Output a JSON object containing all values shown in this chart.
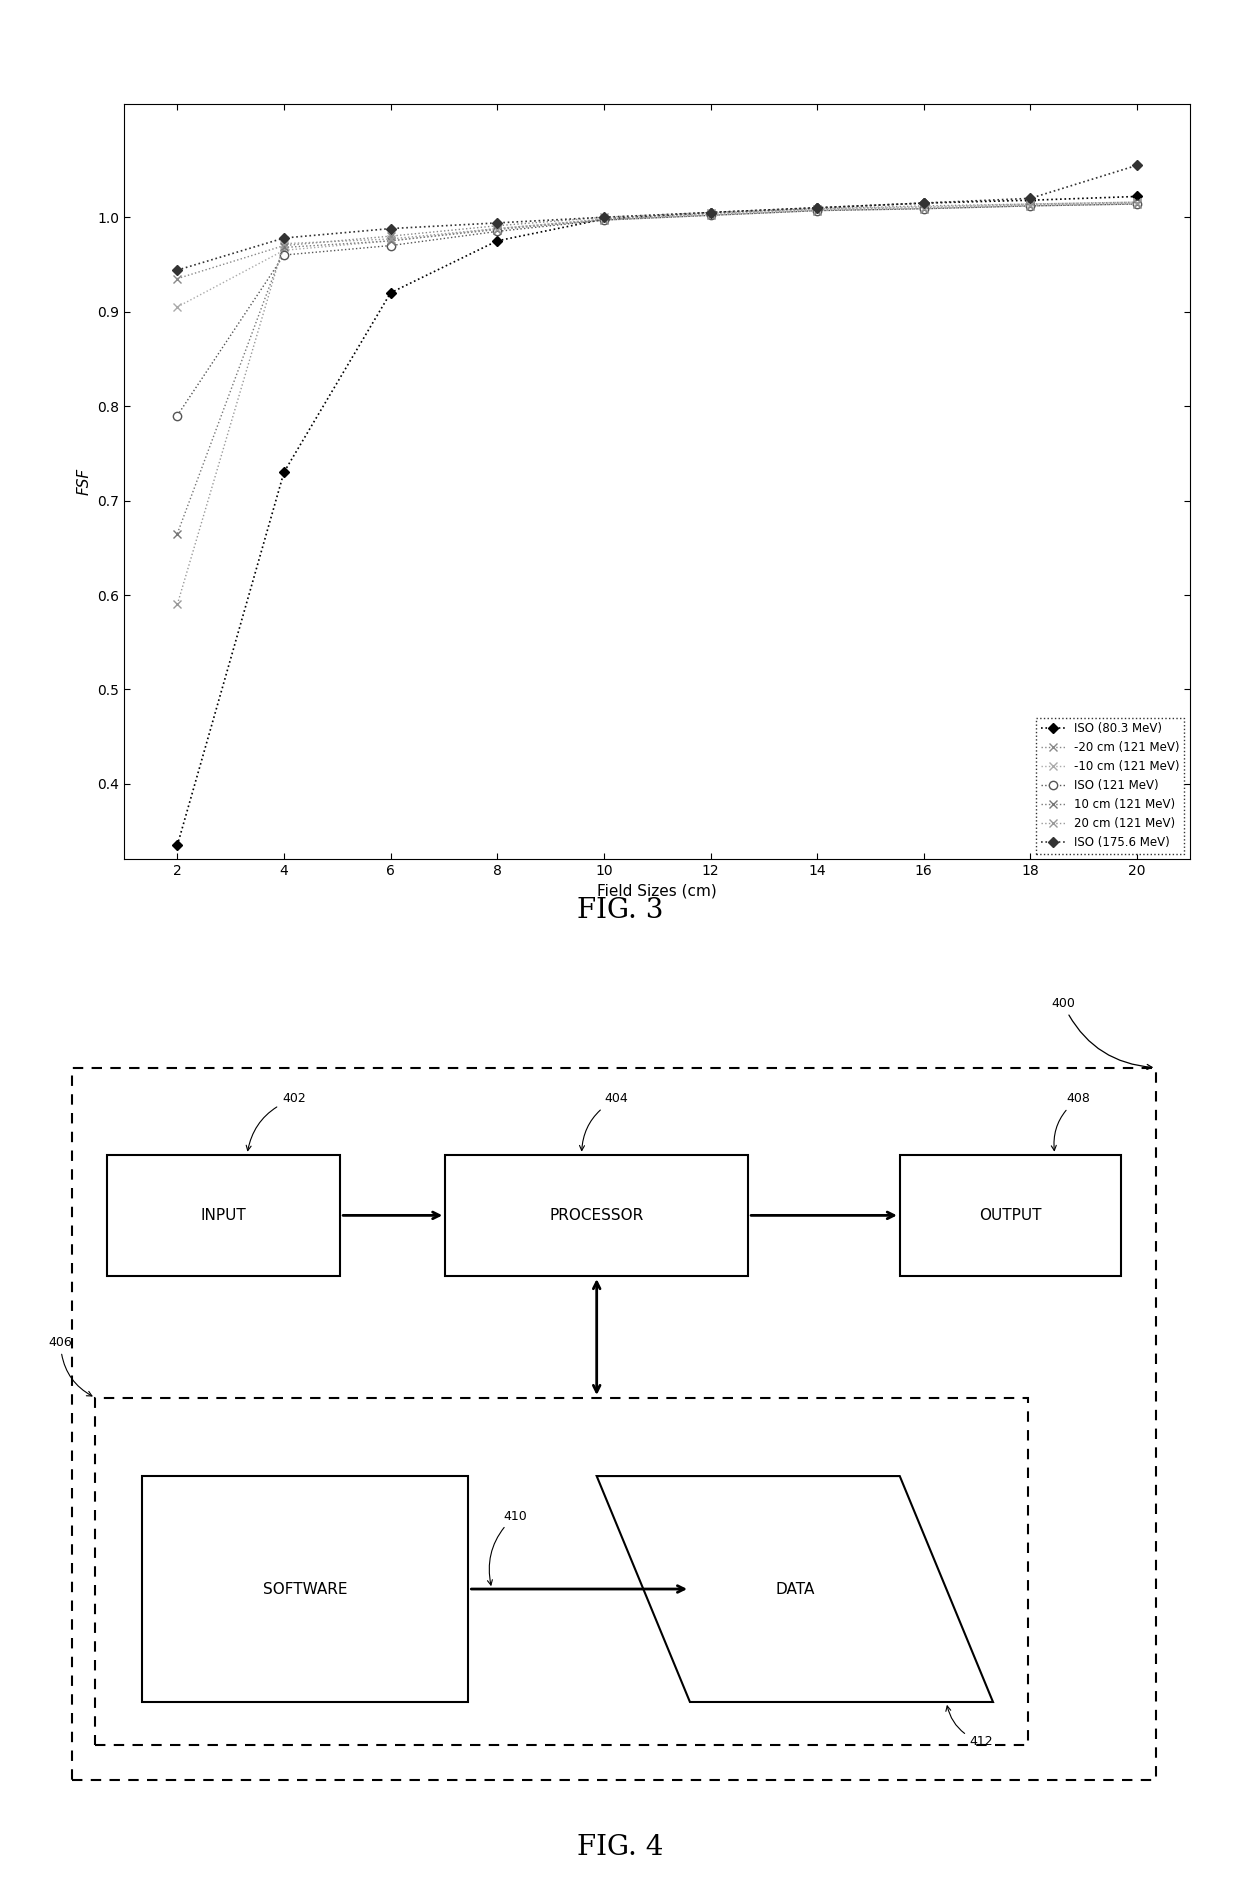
{
  "fig3": {
    "xlabel": "Field Sizes (cm)",
    "ylabel": "FSF",
    "xlim": [
      1,
      21
    ],
    "ylim": [
      0.32,
      1.12
    ],
    "xticks": [
      2,
      4,
      6,
      8,
      10,
      12,
      14,
      16,
      18,
      20
    ],
    "yticks": [
      0.4,
      0.5,
      0.6,
      0.7,
      0.8,
      0.9,
      1.0
    ],
    "series": [
      {
        "label": "ISO (80.3 MeV)",
        "x": [
          2,
          4,
          6,
          8,
          10,
          12,
          14,
          16,
          18,
          20
        ],
        "y": [
          0.335,
          0.73,
          0.92,
          0.975,
          0.998,
          1.005,
          1.01,
          1.015,
          1.018,
          1.022
        ],
        "color": "#000000",
        "linestyle": "dotted",
        "marker": "D",
        "markersize": 5,
        "markerfacecolor": "#000000",
        "markeredgecolor": "#000000",
        "linewidth": 1.2
      },
      {
        "label": "-20 cm (121 MeV)",
        "x": [
          2,
          4,
          6,
          8,
          10,
          12,
          14,
          16,
          18,
          20
        ],
        "y": [
          0.935,
          0.97,
          0.98,
          0.991,
          1.0,
          1.005,
          1.009,
          1.012,
          1.014,
          1.016
        ],
        "color": "#888888",
        "linestyle": "dotted",
        "marker": "x",
        "markersize": 6,
        "markerfacecolor": "#888888",
        "markeredgecolor": "#888888",
        "linewidth": 1.0
      },
      {
        "label": "-10 cm (121 MeV)",
        "x": [
          2,
          4,
          6,
          8,
          10,
          12,
          14,
          16,
          18,
          20
        ],
        "y": [
          0.905,
          0.965,
          0.975,
          0.988,
          0.998,
          1.004,
          1.009,
          1.011,
          1.014,
          1.016
        ],
        "color": "#aaaaaa",
        "linestyle": "dotted",
        "marker": "x",
        "markersize": 6,
        "markerfacecolor": "#aaaaaa",
        "markeredgecolor": "#aaaaaa",
        "linewidth": 1.0
      },
      {
        "label": "ISO (121 MeV)",
        "x": [
          2,
          4,
          6,
          8,
          10,
          12,
          14,
          16,
          18,
          20
        ],
        "y": [
          0.79,
          0.96,
          0.97,
          0.985,
          0.997,
          1.002,
          1.007,
          1.009,
          1.012,
          1.014
        ],
        "color": "#555555",
        "linestyle": "dotted",
        "marker": "o",
        "markersize": 6,
        "markerfacecolor": "white",
        "markeredgecolor": "#555555",
        "linewidth": 1.0
      },
      {
        "label": "10 cm (121 MeV)",
        "x": [
          2,
          4,
          6,
          8,
          10,
          12,
          14,
          16,
          18,
          20
        ],
        "y": [
          0.665,
          0.968,
          0.975,
          0.987,
          0.997,
          1.002,
          1.007,
          1.009,
          1.012,
          1.014
        ],
        "color": "#777777",
        "linestyle": "dotted",
        "marker": "x",
        "markersize": 6,
        "markerfacecolor": "#777777",
        "markeredgecolor": "#777777",
        "linewidth": 1.0
      },
      {
        "label": "20 cm (121 MeV)",
        "x": [
          2,
          4,
          6,
          8,
          10,
          12,
          14,
          16,
          18,
          20
        ],
        "y": [
          0.59,
          0.972,
          0.977,
          0.988,
          0.998,
          1.003,
          1.008,
          1.01,
          1.013,
          1.015
        ],
        "color": "#999999",
        "linestyle": "dotted",
        "marker": "x",
        "markersize": 6,
        "markerfacecolor": "#999999",
        "markeredgecolor": "#999999",
        "linewidth": 1.0
      },
      {
        "label": "ISO (175.6 MeV)",
        "x": [
          2,
          4,
          6,
          8,
          10,
          12,
          14,
          16,
          18,
          20
        ],
        "y": [
          0.944,
          0.978,
          0.988,
          0.994,
          1.0,
          1.005,
          1.01,
          1.015,
          1.02,
          1.055
        ],
        "color": "#333333",
        "linestyle": "dotted",
        "marker": "D",
        "markersize": 5,
        "markerfacecolor": "#333333",
        "markeredgecolor": "#333333",
        "linewidth": 1.2
      }
    ]
  }
}
